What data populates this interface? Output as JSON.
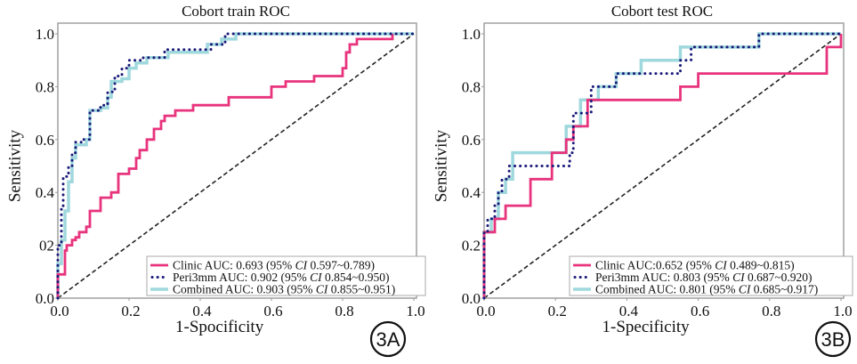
{
  "chart_data": [
    {
      "type": "line",
      "id": "A",
      "title": "Cobort train ROC",
      "xlabel": "1-Spocificity",
      "ylabel": "Sensitivity",
      "xlim": [
        0,
        1
      ],
      "ylim": [
        0,
        1
      ],
      "xticks": [
        "0.0",
        "0.2",
        "0.4",
        "0.6",
        "0.8",
        "1.0"
      ],
      "yticks": [
        "0.0",
        "02",
        "0.4",
        "0.6",
        "0.8",
        "1.0"
      ],
      "badge": "3A",
      "legend_position": "lower-right",
      "series": [
        {
          "name": "Clinic",
          "legend": "Clinic AUC: 0.693 (95% CI 0.597~0.789)",
          "legend_pre": "Clinic AUC: 0.693 (95% ",
          "legend_post": " 0.597~0.789)",
          "color": "#e8337d",
          "style": "solid",
          "x": [
            0,
            0,
            0.02,
            0.02,
            0.025,
            0.025,
            0.04,
            0.04,
            0.05,
            0.05,
            0.06,
            0.06,
            0.08,
            0.08,
            0.09,
            0.09,
            0.12,
            0.12,
            0.15,
            0.15,
            0.17,
            0.17,
            0.2,
            0.2,
            0.22,
            0.22,
            0.23,
            0.23,
            0.25,
            0.25,
            0.27,
            0.27,
            0.29,
            0.29,
            0.3,
            0.3,
            0.33,
            0.33,
            0.38,
            0.38,
            0.48,
            0.48,
            0.6,
            0.6,
            0.64,
            0.64,
            0.72,
            0.72,
            0.8,
            0.8,
            0.81,
            0.81,
            0.82,
            0.82,
            0.84,
            0.84,
            0.86,
            0.86,
            0.94,
            0.94
          ],
          "y": [
            0,
            0.09,
            0.09,
            0.18,
            0.18,
            0.2,
            0.2,
            0.22,
            0.22,
            0.23,
            0.23,
            0.25,
            0.25,
            0.27,
            0.27,
            0.33,
            0.33,
            0.38,
            0.38,
            0.4,
            0.4,
            0.47,
            0.47,
            0.49,
            0.49,
            0.53,
            0.53,
            0.56,
            0.56,
            0.6,
            0.6,
            0.64,
            0.64,
            0.67,
            0.67,
            0.69,
            0.69,
            0.71,
            0.71,
            0.73,
            0.73,
            0.76,
            0.76,
            0.8,
            0.8,
            0.82,
            0.82,
            0.84,
            0.84,
            0.87,
            0.87,
            0.93,
            0.93,
            0.96,
            0.96,
            0.98,
            0.98,
            0.98,
            0.98,
            1.0
          ]
        },
        {
          "name": "Peri3mm",
          "legend": "Peri3mm AUC: 0.902 (95% CI 0.854~0.950)",
          "legend_pre": "Peri3mm AUC: 0.902 (95% ",
          "legend_post": " 0.854~0.950)",
          "color": "#1a1a7a",
          "style": "dotted",
          "x": [
            0,
            0,
            0.01,
            0.01,
            0.015,
            0.015,
            0.03,
            0.03,
            0.04,
            0.04,
            0.05,
            0.05,
            0.07,
            0.07,
            0.09,
            0.09,
            0.12,
            0.12,
            0.14,
            0.14,
            0.16,
            0.16,
            0.18,
            0.18,
            0.2,
            0.2,
            0.24,
            0.24,
            0.3,
            0.3,
            0.43,
            0.43,
            0.47,
            0.47,
            0.52,
            1.0
          ],
          "y": [
            0,
            0.2,
            0.2,
            0.34,
            0.34,
            0.46,
            0.46,
            0.5,
            0.5,
            0.55,
            0.55,
            0.59,
            0.59,
            0.6,
            0.6,
            0.71,
            0.71,
            0.73,
            0.73,
            0.78,
            0.78,
            0.84,
            0.84,
            0.87,
            0.87,
            0.9,
            0.9,
            0.91,
            0.91,
            0.94,
            0.94,
            0.96,
            0.96,
            1.0,
            1.0,
            1.0
          ]
        },
        {
          "name": "Combined",
          "legend": "Combined AUC: 0.903 (95% CI 0.855~0.951)",
          "legend_pre": "Combined AUC: 0.903 (95% ",
          "legend_post": " 0.855~0.951)",
          "color": "#9fd8dd",
          "style": "solid",
          "x": [
            0,
            0,
            0.01,
            0.01,
            0.02,
            0.02,
            0.03,
            0.03,
            0.04,
            0.04,
            0.05,
            0.05,
            0.08,
            0.08,
            0.09,
            0.09,
            0.12,
            0.12,
            0.14,
            0.14,
            0.15,
            0.15,
            0.18,
            0.18,
            0.2,
            0.2,
            0.22,
            0.22,
            0.25,
            0.25,
            0.31,
            0.31,
            0.42,
            0.42,
            0.46,
            0.46,
            0.5,
            0.5,
            1.0
          ],
          "y": [
            0,
            0.13,
            0.13,
            0.22,
            0.22,
            0.33,
            0.33,
            0.44,
            0.44,
            0.53,
            0.53,
            0.58,
            0.58,
            0.6,
            0.6,
            0.71,
            0.71,
            0.72,
            0.72,
            0.76,
            0.76,
            0.82,
            0.82,
            0.83,
            0.83,
            0.87,
            0.87,
            0.89,
            0.89,
            0.91,
            0.91,
            0.93,
            0.93,
            0.96,
            0.96,
            0.98,
            0.98,
            1.0,
            1.0
          ]
        }
      ]
    },
    {
      "type": "line",
      "id": "B",
      "title": "Cobort test ROC",
      "xlabel": "1-Specificity",
      "ylabel": "Sensitivity",
      "xlim": [
        0,
        1
      ],
      "ylim": [
        0,
        1
      ],
      "xticks": [
        "0.0",
        "0.2",
        "0.4",
        "0.6",
        "0.8",
        "1.0"
      ],
      "yticks": [
        "0.0",
        "0.2",
        "0.4",
        "0.6",
        "0.8",
        "1.0"
      ],
      "badge": "3B",
      "legend_position": "lower-right",
      "series": [
        {
          "name": "Clinic",
          "legend": "Clinic AUC:0.652 (95% CI 0.489~0.815)",
          "legend_pre": "Clinic AUC:0.652 (95% ",
          "legend_post": " 0.489~0.815)",
          "color": "#e8337d",
          "style": "solid",
          "x": [
            0,
            0,
            0.03,
            0.03,
            0.06,
            0.06,
            0.13,
            0.13,
            0.19,
            0.19,
            0.23,
            0.23,
            0.25,
            0.25,
            0.29,
            0.29,
            0.55,
            0.55,
            0.6,
            0.6,
            0.75,
            0.75,
            0.96,
            0.96,
            1.0,
            1.0
          ],
          "y": [
            0,
            0.25,
            0.25,
            0.3,
            0.3,
            0.35,
            0.35,
            0.45,
            0.45,
            0.55,
            0.55,
            0.6,
            0.6,
            0.65,
            0.65,
            0.75,
            0.75,
            0.8,
            0.8,
            0.85,
            0.85,
            0.85,
            0.85,
            0.95,
            0.95,
            1.0
          ]
        },
        {
          "name": "Peri3mm",
          "legend": "Peri3mm AUC: 0.803 (95% CI 0.687~0.920)",
          "legend_pre": "Peri3mm AUC: 0.803 (95% ",
          "legend_post": " 0.687~0.920)",
          "color": "#1a1a7a",
          "style": "dotted",
          "x": [
            0,
            0,
            0.01,
            0.01,
            0.03,
            0.03,
            0.04,
            0.04,
            0.05,
            0.05,
            0.07,
            0.07,
            0.24,
            0.24,
            0.25,
            0.25,
            0.3,
            0.3,
            0.37,
            0.37,
            0.55,
            0.55,
            0.58,
            0.58,
            0.77,
            0.77,
            1.0
          ],
          "y": [
            0,
            0.25,
            0.25,
            0.3,
            0.3,
            0.35,
            0.35,
            0.4,
            0.4,
            0.45,
            0.45,
            0.5,
            0.5,
            0.55,
            0.55,
            0.7,
            0.7,
            0.8,
            0.8,
            0.85,
            0.85,
            0.9,
            0.9,
            0.95,
            0.95,
            1.0,
            1.0
          ]
        },
        {
          "name": "Combined",
          "legend": "Combined AUC: 0.801 (95% CI 0.685~0.917)",
          "legend_pre": "Combined AUC: 0.801 (95% ",
          "legend_post": " 0.685~0.917)",
          "color": "#9fd8dd",
          "style": "solid",
          "x": [
            0,
            0,
            0.02,
            0.02,
            0.04,
            0.04,
            0.06,
            0.06,
            0.08,
            0.08,
            0.23,
            0.23,
            0.27,
            0.27,
            0.32,
            0.32,
            0.37,
            0.37,
            0.44,
            0.44,
            0.55,
            0.55,
            0.77,
            0.77,
            1.0
          ],
          "y": [
            0,
            0.25,
            0.25,
            0.3,
            0.3,
            0.4,
            0.4,
            0.45,
            0.45,
            0.55,
            0.55,
            0.65,
            0.65,
            0.75,
            0.75,
            0.8,
            0.8,
            0.85,
            0.85,
            0.9,
            0.9,
            0.95,
            0.95,
            1.0,
            1.0
          ]
        }
      ]
    }
  ],
  "legend_ci_label": "CI"
}
